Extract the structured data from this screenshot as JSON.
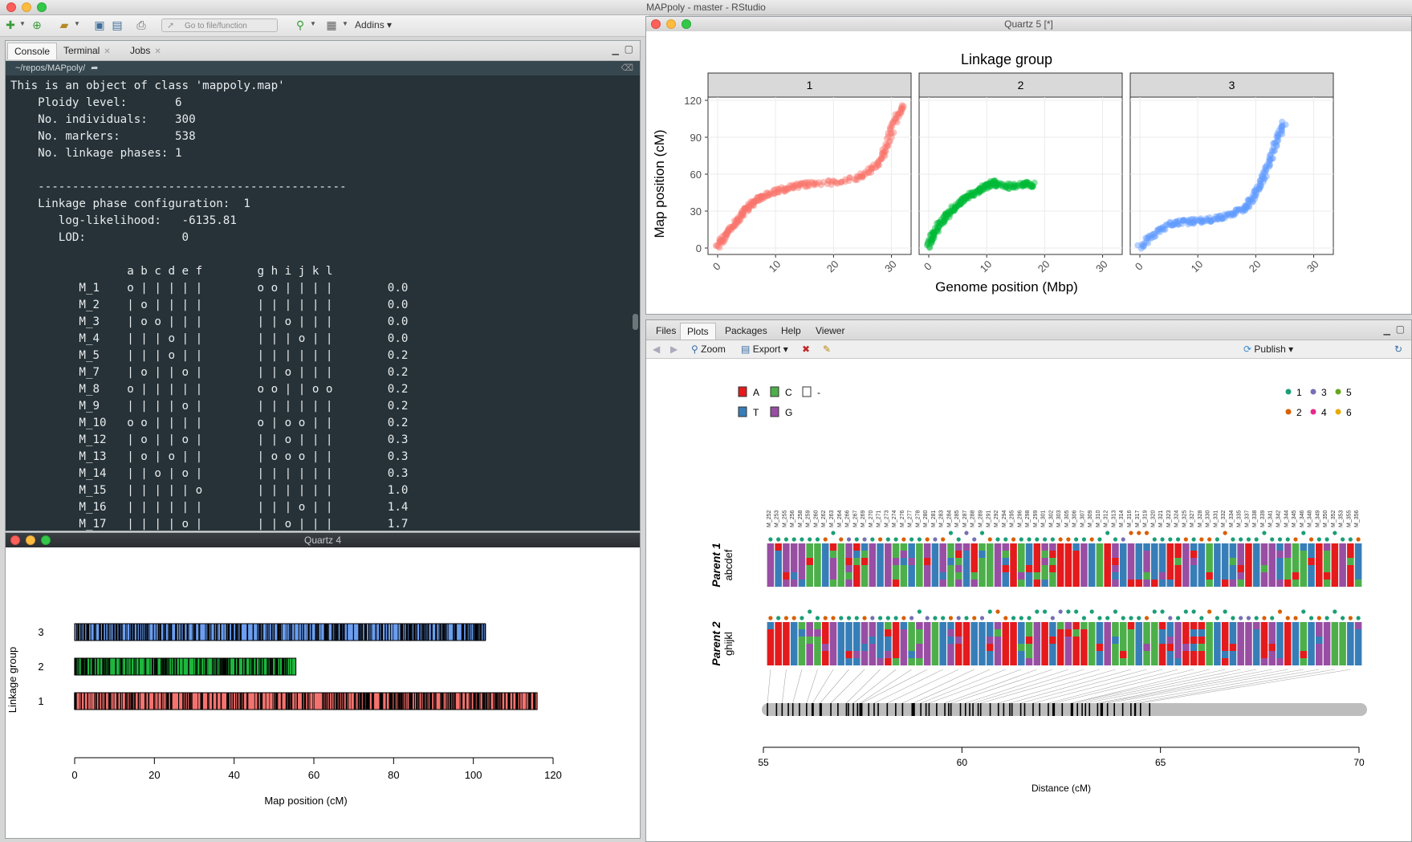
{
  "window": {
    "title": "MAPpoly - master - RStudio"
  },
  "toolbar": {
    "goto_placeholder": "Go to file/function",
    "addins_label": "Addins"
  },
  "console": {
    "tabs": [
      "Console",
      "Terminal",
      "Jobs"
    ],
    "path": "~/repos/MAPpoly/",
    "lines": [
      "This is an object of class 'mappoly.map'",
      "    Ploidy level:       6",
      "    No. individuals:    300",
      "    No. markers:        538",
      "    No. linkage phases: 1",
      "",
      "    ---------------------------------------------",
      "    Linkage phase configuration:  1",
      "       log-likelihood:   -6135.81",
      "       LOD:              0",
      "",
      "                 a b c d e f        g h i j k l",
      "          M_1    o | | | | |        o o | | | |        0.0",
      "          M_2    | o | | | |        | | | | | |        0.0",
      "          M_3    | o o | | |        | | o | | |        0.0",
      "          M_4    | | | o | |        | | | o | |        0.0",
      "          M_5    | | | o | |        | | | | | |        0.2",
      "          M_7    | o | | o |        | | o | | |        0.2",
      "          M_8    o | | | | |        o o | | o o        0.2",
      "          M_9    | | | | o |        | | | | | |        0.2",
      "          M_10   o o | | | |        o | o o | |        0.2",
      "          M_12   | o | | o |        | | o | | |        0.3",
      "          M_13   | o | o | |        | o o o | |        0.3",
      "          M_14   | | o | o |        | | | | | |        0.3",
      "          M_15   | | | | | o        | | | | | |        1.0",
      "          M_16   | | | | | |        | | | o | |        1.4",
      "          M_17   | | | | o |        | | o | | |        1.7"
    ]
  },
  "quartz4": {
    "title": "Quartz 4",
    "chart_data": {
      "type": "bar",
      "categories": [
        "1",
        "2",
        "3"
      ],
      "values": [
        116,
        55.5,
        103
      ],
      "xlabel": "Map position (cM)",
      "ylabel": "Linkage group",
      "xlim": [
        0,
        120
      ],
      "xticks": [
        0,
        20,
        40,
        60,
        80,
        100,
        120
      ],
      "colors": [
        "#f4736f",
        "#1eb63e",
        "#6b9ef0"
      ]
    }
  },
  "quartz5": {
    "title": "Quartz 5 [*]",
    "chart_data": {
      "type": "scatter",
      "title": "Linkage group",
      "xlabel": "Genome position (Mbp)",
      "ylabel": "Map position (cM)",
      "panels": [
        "1",
        "2",
        "3"
      ],
      "ylim": [
        0,
        120
      ],
      "yticks": [
        0,
        30,
        60,
        90,
        120
      ],
      "xlim": [
        0,
        32
      ],
      "xticks": [
        0,
        10,
        20,
        30
      ],
      "colors": [
        "#f8766d",
        "#00ba38",
        "#619cff"
      ],
      "series": [
        {
          "panel": "1",
          "x": [
            0,
            1,
            2,
            3,
            4,
            5,
            6,
            7,
            8,
            10,
            12,
            14,
            16,
            20,
            24,
            26,
            28,
            29,
            30,
            31,
            32
          ],
          "y": [
            1,
            8,
            14,
            20,
            26,
            32,
            36,
            40,
            43,
            46,
            49,
            51,
            52,
            53,
            57,
            62,
            70,
            80,
            95,
            108,
            115
          ]
        },
        {
          "panel": "2",
          "x": [
            0,
            0.5,
            1,
            2,
            3,
            4,
            5,
            6,
            7,
            8,
            9,
            10,
            11,
            12,
            14,
            16,
            17,
            18
          ],
          "y": [
            1,
            8,
            13,
            20,
            26,
            31,
            35,
            39,
            42,
            45,
            48,
            51,
            53,
            52,
            50,
            52,
            52,
            51
          ]
        },
        {
          "panel": "3",
          "x": [
            0,
            2,
            4,
            6,
            8,
            10,
            12,
            14,
            16,
            18,
            19,
            20,
            21,
            22,
            23,
            24,
            25
          ],
          "y": [
            1,
            9,
            16,
            21,
            21,
            22,
            23,
            25,
            28,
            32,
            38,
            45,
            55,
            65,
            78,
            92,
            103
          ]
        }
      ]
    }
  },
  "plots_pane": {
    "tabs": [
      "Files",
      "Plots",
      "Packages",
      "Help",
      "Viewer"
    ],
    "zoom_label": "Zoom",
    "export_label": "Export",
    "publish_label": "Publish",
    "chart_data": {
      "type": "heatmap",
      "xlabel": "Distance (cM)",
      "xlim": [
        55,
        70
      ],
      "xticks": [
        55,
        60,
        65,
        70
      ],
      "parent1_label": "Parent 1",
      "parent1_hom": "abcdef",
      "parent2_label": "Parent 2",
      "parent2_hom": "ghijkl",
      "legend_alleles": [
        {
          "label": "A",
          "color": "#e41a1c"
        },
        {
          "label": "C",
          "color": "#4daf4a"
        },
        {
          "label": "-",
          "color": "#ffffff"
        },
        {
          "label": "T",
          "color": "#377eb8"
        },
        {
          "label": "G",
          "color": "#984ea3"
        }
      ],
      "legend_dosage": [
        {
          "label": "1",
          "color": "#1b9e77"
        },
        {
          "label": "3",
          "color": "#7570b3"
        },
        {
          "label": "5",
          "color": "#66a61e"
        },
        {
          "label": "2",
          "color": "#d95f02"
        },
        {
          "label": "4",
          "color": "#e7298a"
        },
        {
          "label": "6",
          "color": "#e6ab02"
        }
      ],
      "marker_first": 252,
      "marker_last": 356
    }
  }
}
